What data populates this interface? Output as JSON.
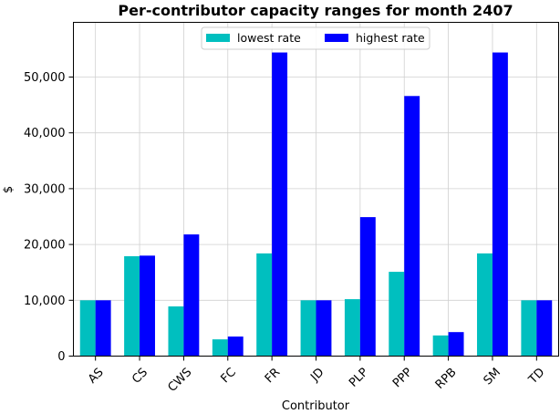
{
  "chart_data": {
    "type": "bar",
    "title": "Per-contributor capacity ranges for month 2407",
    "xlabel": "Contributor",
    "ylabel": "$",
    "categories": [
      "AS",
      "CS",
      "CWS",
      "FC",
      "FR",
      "JD",
      "PLP",
      "PPP",
      "RPB",
      "SM",
      "TD"
    ],
    "series": [
      {
        "name": "lowest rate",
        "color": "#00bfbf",
        "values": [
          10000,
          17900,
          8900,
          3000,
          18400,
          10000,
          10200,
          15100,
          3700,
          18400,
          10000
        ]
      },
      {
        "name": "highest rate",
        "color": "#0000ff",
        "values": [
          10000,
          18000,
          21800,
          3500,
          54400,
          10000,
          24900,
          46600,
          4300,
          54400,
          10000
        ]
      }
    ],
    "ylim": [
      0,
      59800
    ],
    "yticks": [
      0,
      10000,
      20000,
      30000,
      40000,
      50000
    ],
    "ytick_labels": [
      "0",
      "10,000",
      "20,000",
      "30,000",
      "40,000",
      "50,000"
    ],
    "grid": true,
    "legend_position": "top-center"
  }
}
